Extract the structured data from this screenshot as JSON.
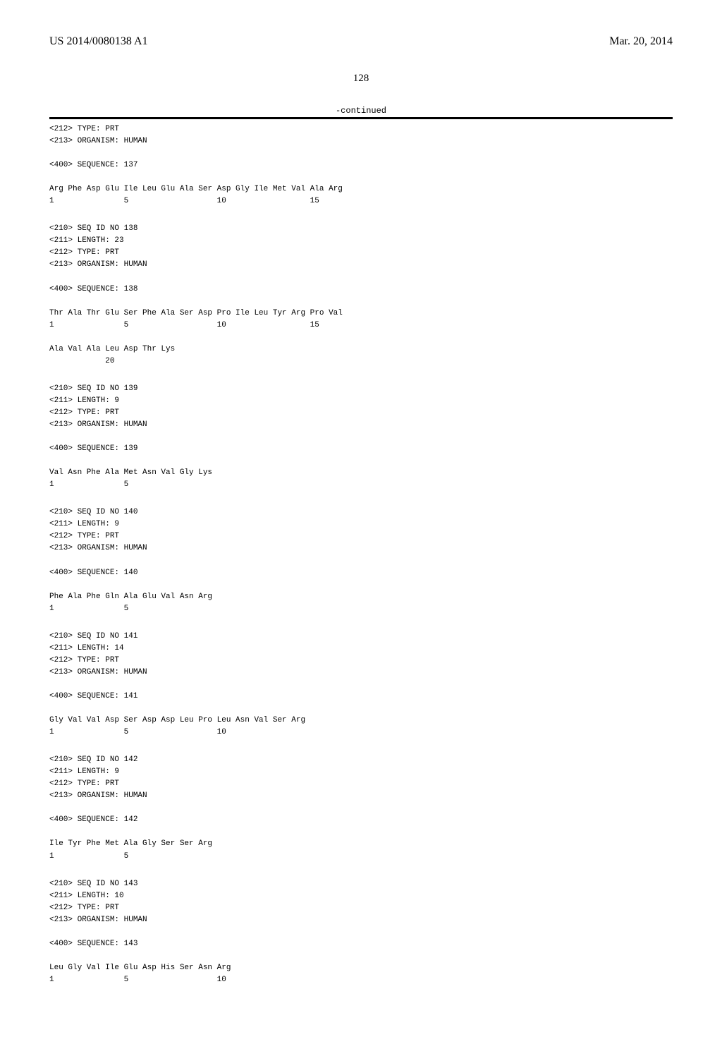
{
  "header": {
    "publication_number": "US 2014/0080138 A1",
    "publication_date": "Mar. 20, 2014"
  },
  "page_number": "128",
  "continued_label": "-continued",
  "blocks": [
    {
      "lines": [
        "<212> TYPE: PRT",
        "<213> ORGANISM: HUMAN",
        "",
        "<400> SEQUENCE: 137",
        "",
        "Arg Phe Asp Glu Ile Leu Glu Ala Ser Asp Gly Ile Met Val Ala Arg",
        "1               5                   10                  15"
      ]
    },
    {
      "lines": [
        "<210> SEQ ID NO 138",
        "<211> LENGTH: 23",
        "<212> TYPE: PRT",
        "<213> ORGANISM: HUMAN",
        "",
        "<400> SEQUENCE: 138",
        "",
        "Thr Ala Thr Glu Ser Phe Ala Ser Asp Pro Ile Leu Tyr Arg Pro Val",
        "1               5                   10                  15",
        "",
        "Ala Val Ala Leu Asp Thr Lys",
        "            20"
      ]
    },
    {
      "lines": [
        "<210> SEQ ID NO 139",
        "<211> LENGTH: 9",
        "<212> TYPE: PRT",
        "<213> ORGANISM: HUMAN",
        "",
        "<400> SEQUENCE: 139",
        "",
        "Val Asn Phe Ala Met Asn Val Gly Lys",
        "1               5"
      ]
    },
    {
      "lines": [
        "<210> SEQ ID NO 140",
        "<211> LENGTH: 9",
        "<212> TYPE: PRT",
        "<213> ORGANISM: HUMAN",
        "",
        "<400> SEQUENCE: 140",
        "",
        "Phe Ala Phe Gln Ala Glu Val Asn Arg",
        "1               5"
      ]
    },
    {
      "lines": [
        "<210> SEQ ID NO 141",
        "<211> LENGTH: 14",
        "<212> TYPE: PRT",
        "<213> ORGANISM: HUMAN",
        "",
        "<400> SEQUENCE: 141",
        "",
        "Gly Val Val Asp Ser Asp Asp Leu Pro Leu Asn Val Ser Arg",
        "1               5                   10"
      ]
    },
    {
      "lines": [
        "<210> SEQ ID NO 142",
        "<211> LENGTH: 9",
        "<212> TYPE: PRT",
        "<213> ORGANISM: HUMAN",
        "",
        "<400> SEQUENCE: 142",
        "",
        "Ile Tyr Phe Met Ala Gly Ser Ser Arg",
        "1               5"
      ]
    },
    {
      "lines": [
        "<210> SEQ ID NO 143",
        "<211> LENGTH: 10",
        "<212> TYPE: PRT",
        "<213> ORGANISM: HUMAN",
        "",
        "<400> SEQUENCE: 143",
        "",
        "Leu Gly Val Ile Glu Asp His Ser Asn Arg",
        "1               5                   10"
      ]
    }
  ]
}
